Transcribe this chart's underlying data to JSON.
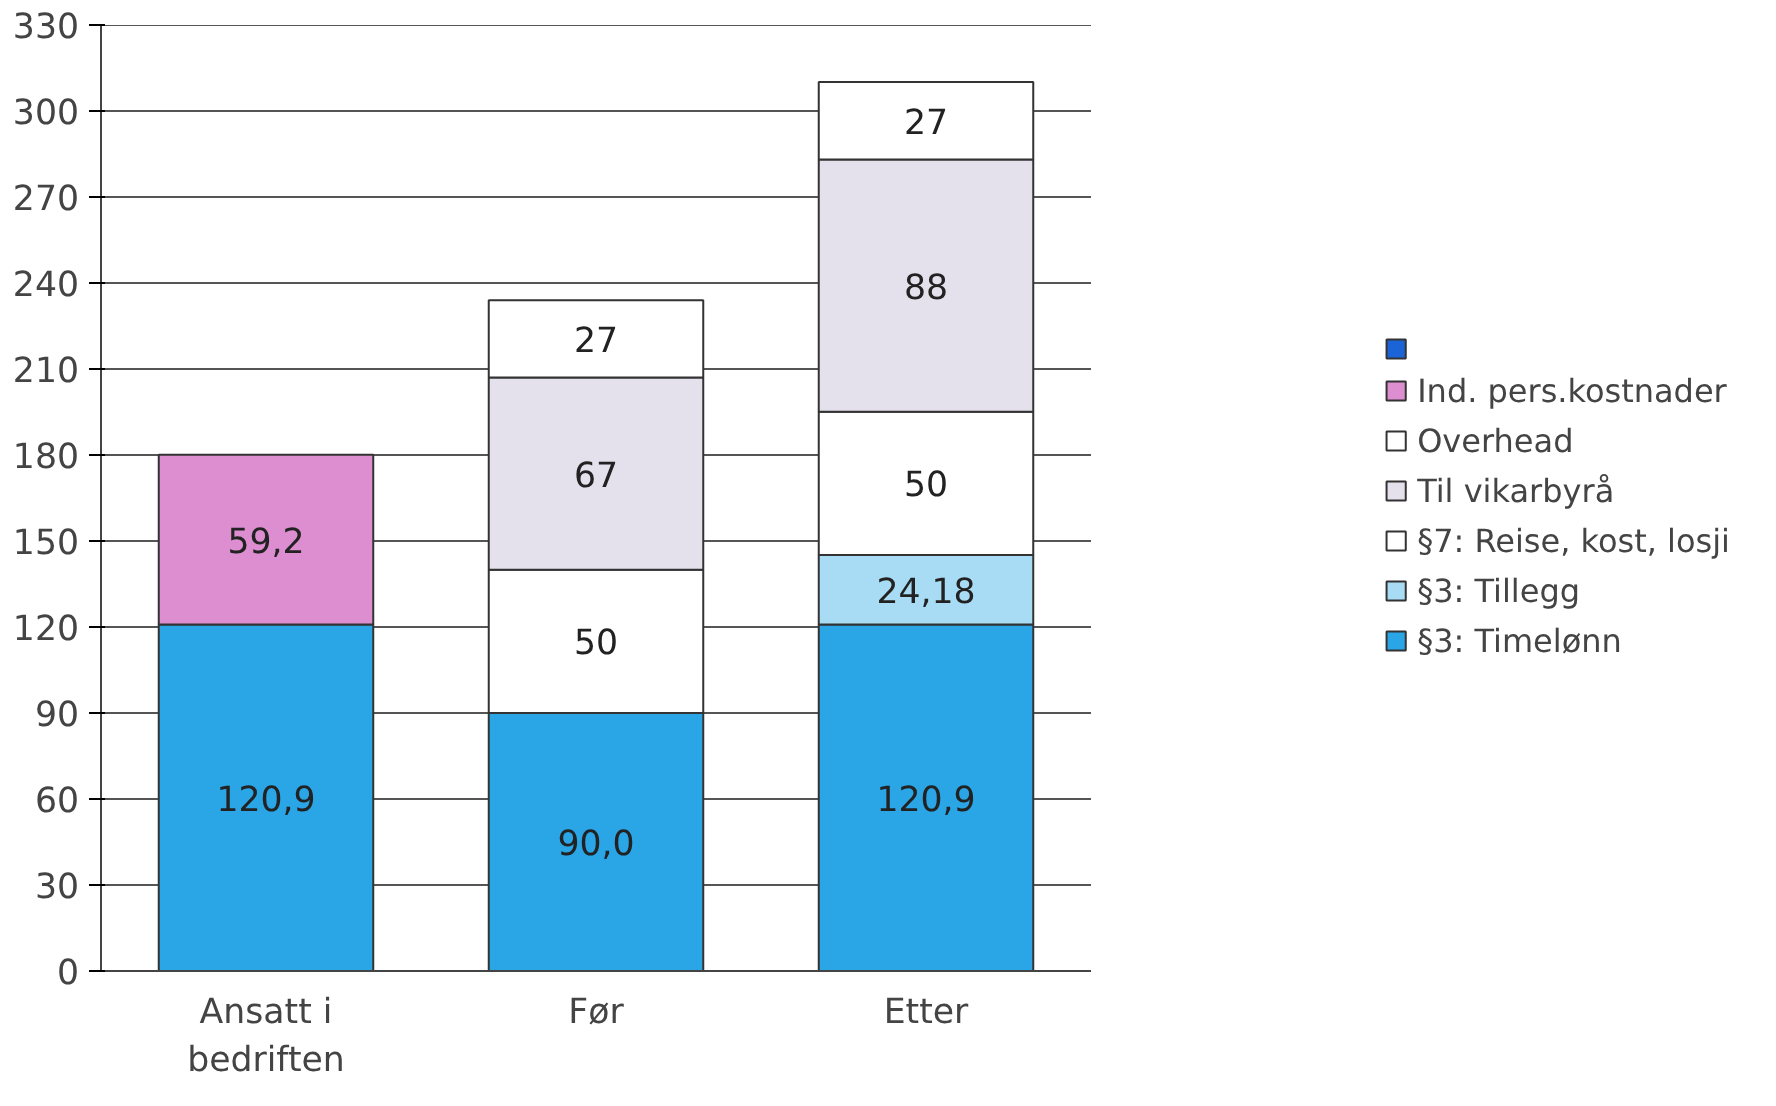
{
  "chart_data": {
    "type": "bar",
    "stacked": true,
    "categories": [
      "Ansatt i\nbedriften",
      "Før",
      "Etter"
    ],
    "series": [
      {
        "name": "§3: Timelønn",
        "color": "#2aa5e6",
        "values": [
          120.9,
          90.0,
          120.9
        ],
        "value_labels": [
          "120,9",
          "90,0",
          "120,9"
        ]
      },
      {
        "name": "§3: Tillegg",
        "color": "#a8dcf4",
        "values": [
          null,
          null,
          24.18
        ],
        "value_labels": [
          null,
          null,
          "24,18"
        ]
      },
      {
        "name": "§7: Reise, kost, losji",
        "color": "#ffffff",
        "values": [
          null,
          50,
          50
        ],
        "value_labels": [
          null,
          "50",
          "50"
        ]
      },
      {
        "name": "Til vikarbyrå",
        "color": "#e4e0ec",
        "values": [
          null,
          67,
          88
        ],
        "value_labels": [
          null,
          "67",
          "88"
        ]
      },
      {
        "name": "Overhead",
        "color": "#ffffff",
        "values": [
          null,
          27,
          27
        ],
        "value_labels": [
          null,
          "27",
          "27"
        ]
      },
      {
        "name": "Ind. pers.kostnader",
        "color": "#dc8ed0",
        "values": [
          59.2,
          null,
          null
        ],
        "value_labels": [
          "59,2",
          null,
          null
        ]
      },
      {
        "color": "#1a64d8",
        "values": [
          null,
          null,
          null
        ]
      }
    ],
    "ylim": [
      0,
      330
    ],
    "yticks": [
      0,
      30,
      60,
      90,
      120,
      150,
      180,
      210,
      240,
      270,
      300,
      330
    ],
    "grid": "y",
    "legend": "right"
  }
}
